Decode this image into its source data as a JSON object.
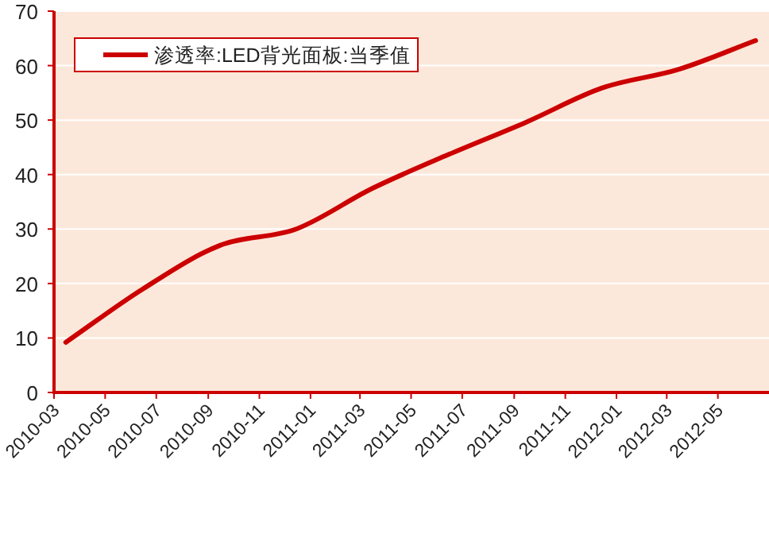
{
  "chart_data": {
    "type": "line",
    "x": [
      "2010-03-15",
      "2010-06-15",
      "2010-09-15",
      "2010-12-15",
      "2011-03-15",
      "2011-06-15",
      "2011-09-15",
      "2011-12-15",
      "2012-03-15",
      "2012-06-15"
    ],
    "series": [
      {
        "name": "渗透率:LED背光面板:当季值",
        "color": "#cc0000",
        "values": [
          9.2,
          19,
          27,
          30,
          37.4,
          43.7,
          49.6,
          55.9,
          59.3,
          64.6
        ]
      }
    ],
    "xlim": [
      "2010-03",
      "2012-07"
    ],
    "xticks": [
      "2010-03",
      "2010-05",
      "2010-07",
      "2010-09",
      "2010-11",
      "2011-01",
      "2011-03",
      "2011-05",
      "2011-07",
      "2011-09",
      "2011-11",
      "2012-01",
      "2012-03",
      "2012-05"
    ],
    "ylim": [
      0,
      70
    ],
    "yticks": [
      0,
      10,
      20,
      30,
      40,
      50,
      60,
      70
    ],
    "grid": "y",
    "legend": "top left",
    "marker": "none",
    "line_style": "solid"
  }
}
